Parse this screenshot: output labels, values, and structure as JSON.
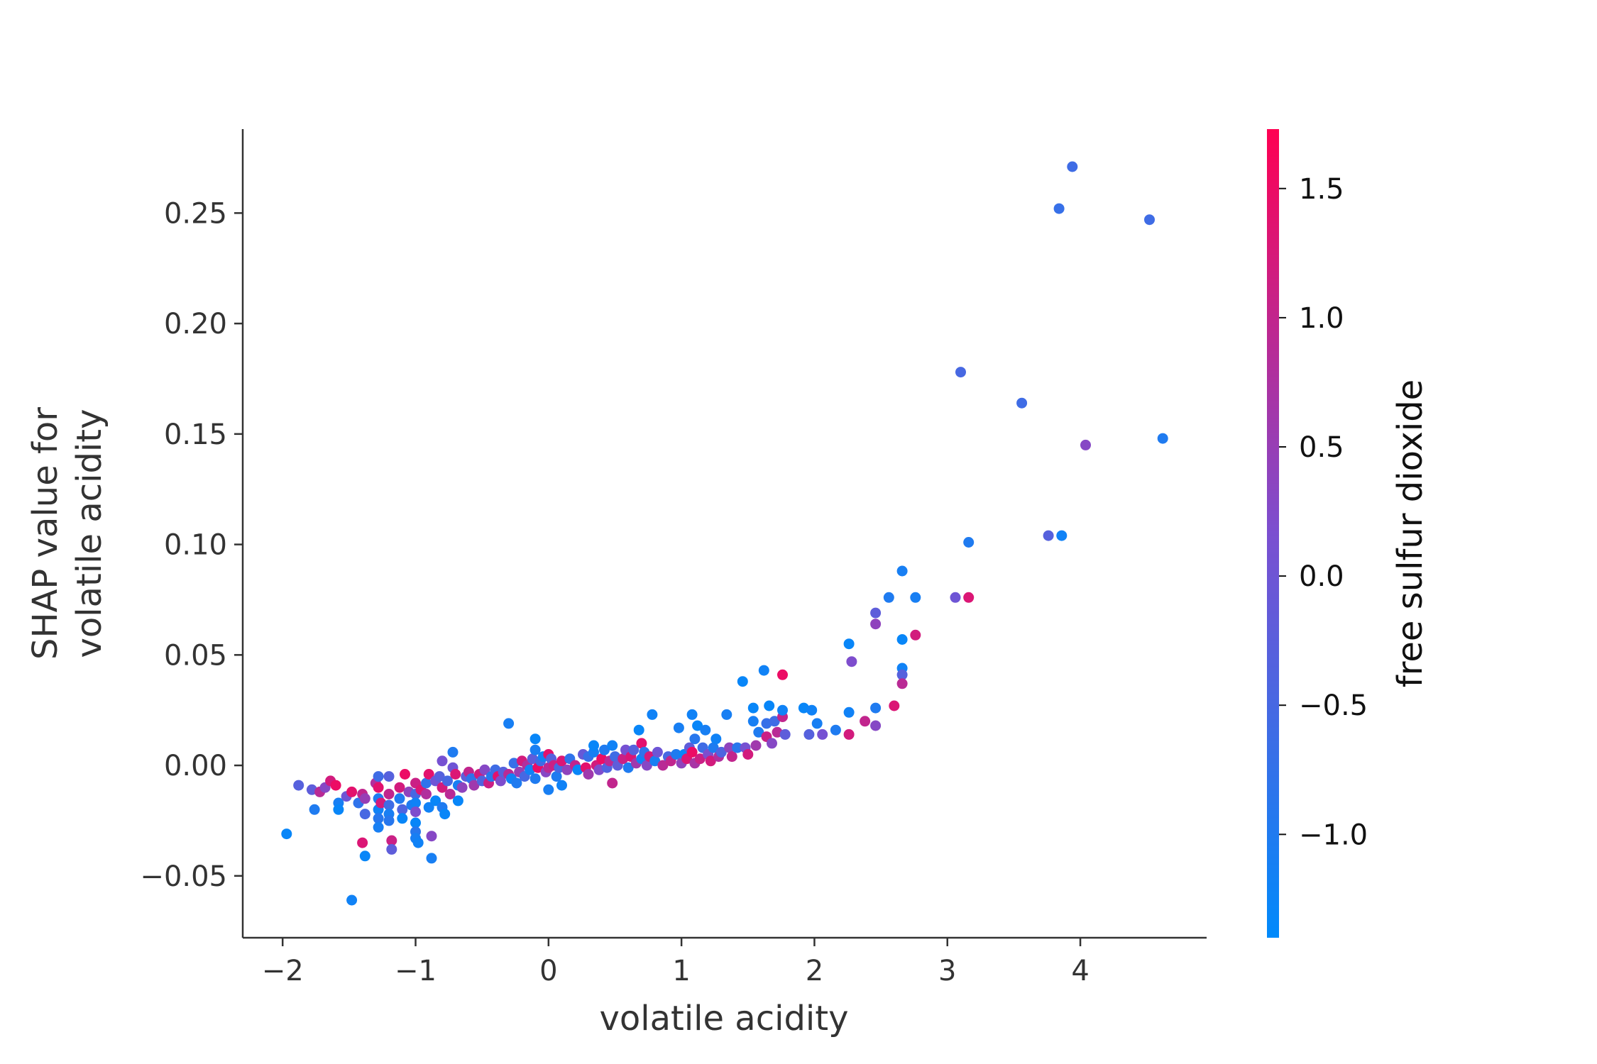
{
  "chart_data": {
    "type": "scatter",
    "xlabel": "volatile acidity",
    "ylabel_lines": [
      "SHAP value for",
      "volatile acidity"
    ],
    "colorbar_label": "free sulfur dioxide",
    "xlim": [
      -2.3,
      4.95
    ],
    "ylim": [
      -0.078,
      0.288
    ],
    "xticks": [
      -2,
      -1,
      0,
      1,
      2,
      3,
      4
    ],
    "xtick_labels": [
      "−2",
      "−1",
      "0",
      "1",
      "2",
      "3",
      "4"
    ],
    "yticks": [
      -0.05,
      0.0,
      0.05,
      0.1,
      0.15,
      0.2,
      0.25
    ],
    "ytick_labels": [
      "−0.05",
      "0.00",
      "0.05",
      "0.10",
      "0.15",
      "0.20",
      "0.25"
    ],
    "colorbar_range": [
      -1.4,
      1.73
    ],
    "colorbar_ticks": [
      -1.0,
      -0.5,
      0.0,
      0.5,
      1.0,
      1.5
    ],
    "colorbar_tick_labels": [
      "−1.0",
      "−0.5",
      "0.0",
      "0.5",
      "1.0",
      "1.5"
    ],
    "colormap": [
      "#008afb",
      "#7b4fd0",
      "#ff0052"
    ],
    "points": [
      [
        -1.97,
        -0.031,
        -1.3
      ],
      [
        -1.88,
        -0.009,
        -0.3
      ],
      [
        -1.78,
        -0.011,
        -0.2
      ],
      [
        -1.76,
        -0.02,
        -1.0
      ],
      [
        -1.72,
        -0.012,
        0.9
      ],
      [
        -1.68,
        -0.01,
        0.3
      ],
      [
        -1.64,
        -0.007,
        1.2
      ],
      [
        -1.6,
        -0.009,
        1.5
      ],
      [
        -1.58,
        -0.017,
        -1.1
      ],
      [
        -1.58,
        -0.02,
        -1.3
      ],
      [
        -1.52,
        -0.014,
        0.0
      ],
      [
        -1.48,
        -0.012,
        1.4
      ],
      [
        -1.48,
        -0.061,
        -1.2
      ],
      [
        -1.43,
        -0.017,
        -0.8
      ],
      [
        -1.4,
        -0.013,
        1.0
      ],
      [
        -1.38,
        -0.015,
        0.5
      ],
      [
        -1.38,
        -0.022,
        -0.5
      ],
      [
        -1.4,
        -0.035,
        1.3
      ],
      [
        -1.38,
        -0.041,
        -1.3
      ],
      [
        -1.3,
        -0.008,
        0.8
      ],
      [
        -1.28,
        -0.005,
        -0.6
      ],
      [
        -1.28,
        -0.01,
        1.4
      ],
      [
        -1.28,
        -0.015,
        -1.0
      ],
      [
        -1.28,
        -0.02,
        -1.2
      ],
      [
        -1.28,
        -0.024,
        -0.9
      ],
      [
        -1.28,
        -0.028,
        -1.1
      ],
      [
        -1.26,
        -0.017,
        1.2
      ],
      [
        -1.2,
        -0.005,
        -0.3
      ],
      [
        -1.2,
        -0.013,
        1.0
      ],
      [
        -1.2,
        -0.018,
        -0.6
      ],
      [
        -1.2,
        -0.022,
        -1.1
      ],
      [
        -1.2,
        -0.025,
        -0.9
      ],
      [
        -1.18,
        -0.034,
        1.1
      ],
      [
        -1.18,
        -0.038,
        -0.2
      ],
      [
        -1.12,
        -0.01,
        1.2
      ],
      [
        -1.12,
        -0.015,
        -1.0
      ],
      [
        -1.1,
        -0.02,
        -0.4
      ],
      [
        -1.1,
        -0.024,
        -1.3
      ],
      [
        -1.08,
        -0.004,
        1.5
      ],
      [
        -1.05,
        -0.012,
        0.4
      ],
      [
        -1.03,
        -0.018,
        -1.0
      ],
      [
        -1.0,
        -0.008,
        1.1
      ],
      [
        -1.0,
        -0.013,
        -0.5
      ],
      [
        -1.0,
        -0.017,
        -1.2
      ],
      [
        -1.0,
        -0.021,
        0.2
      ],
      [
        -1.0,
        -0.026,
        -1.3
      ],
      [
        -1.0,
        -0.03,
        -0.9
      ],
      [
        -1.0,
        -0.033,
        -1.1
      ],
      [
        -0.98,
        -0.035,
        -1.2
      ],
      [
        -0.96,
        -0.011,
        1.3
      ],
      [
        -0.92,
        -0.008,
        -0.8
      ],
      [
        -0.92,
        -0.013,
        0.8
      ],
      [
        -0.9,
        -0.004,
        1.4
      ],
      [
        -0.9,
        -0.019,
        -1.2
      ],
      [
        -0.88,
        -0.032,
        0.3
      ],
      [
        -0.88,
        -0.042,
        -1.1
      ],
      [
        -0.85,
        -0.007,
        0.0
      ],
      [
        -0.85,
        -0.016,
        -1.3
      ],
      [
        -0.82,
        -0.005,
        -0.3
      ],
      [
        -0.8,
        0.002,
        0.1
      ],
      [
        -0.8,
        -0.01,
        1.2
      ],
      [
        -0.8,
        -0.019,
        -1.0
      ],
      [
        -0.78,
        -0.022,
        -1.3
      ],
      [
        -0.76,
        -0.007,
        -0.5
      ],
      [
        -0.74,
        -0.013,
        0.9
      ],
      [
        -0.72,
        0.006,
        -1.0
      ],
      [
        -0.72,
        -0.001,
        0.0
      ],
      [
        -0.7,
        -0.004,
        1.3
      ],
      [
        -0.68,
        -0.009,
        -1.1
      ],
      [
        -0.68,
        -0.016,
        -1.3
      ],
      [
        -0.65,
        -0.01,
        0.4
      ],
      [
        -0.62,
        -0.005,
        -0.2
      ],
      [
        -0.6,
        -0.003,
        1.0
      ],
      [
        -0.58,
        -0.006,
        -0.8
      ],
      [
        -0.56,
        -0.009,
        0.6
      ],
      [
        -0.52,
        -0.004,
        1.2
      ],
      [
        -0.5,
        -0.007,
        -0.4
      ],
      [
        -0.48,
        -0.002,
        0.3
      ],
      [
        -0.45,
        -0.008,
        1.1
      ],
      [
        -0.43,
        -0.005,
        -0.9
      ],
      [
        -0.4,
        -0.002,
        -0.6
      ],
      [
        -0.38,
        -0.005,
        1.4
      ],
      [
        -0.36,
        -0.007,
        0.2
      ],
      [
        -0.34,
        -0.003,
        -0.3
      ],
      [
        -0.3,
        -0.004,
        0.9
      ],
      [
        -0.3,
        0.019,
        -1.1
      ],
      [
        -0.28,
        -0.006,
        -1.2
      ],
      [
        -0.26,
        0.001,
        -0.7
      ],
      [
        -0.24,
        -0.008,
        -1.0
      ],
      [
        -0.22,
        -0.003,
        0.5
      ],
      [
        -0.2,
        0.002,
        1.2
      ],
      [
        -0.18,
        -0.005,
        -0.5
      ],
      [
        -0.16,
        0.0,
        0.8
      ],
      [
        -0.14,
        -0.002,
        -1.2
      ],
      [
        -0.12,
        0.003,
        -0.2
      ],
      [
        -0.1,
        -0.006,
        -1.0
      ],
      [
        -0.1,
        0.012,
        -1.3
      ],
      [
        -0.1,
        0.007,
        -1.1
      ],
      [
        -0.08,
        -0.001,
        1.5
      ],
      [
        -0.06,
        0.002,
        -0.6
      ],
      [
        -0.04,
        0.004,
        -1.2
      ],
      [
        -0.02,
        -0.003,
        0.3
      ],
      [
        0.0,
        -0.001,
        0.9
      ],
      [
        0.0,
        0.005,
        1.4
      ],
      [
        0.0,
        -0.011,
        -1.1
      ],
      [
        0.02,
        0.003,
        -0.3
      ],
      [
        0.04,
        0.0,
        1.1
      ],
      [
        0.06,
        -0.005,
        -1.0
      ],
      [
        0.08,
        -0.001,
        -0.5
      ],
      [
        0.1,
        0.002,
        1.3
      ],
      [
        0.1,
        -0.009,
        -1.2
      ],
      [
        0.14,
        -0.002,
        0.4
      ],
      [
        0.16,
        0.003,
        -0.8
      ],
      [
        0.2,
        0.0,
        1.0
      ],
      [
        0.22,
        -0.002,
        -1.3
      ],
      [
        0.26,
        0.005,
        -0.1
      ],
      [
        0.28,
        -0.001,
        1.4
      ],
      [
        0.3,
        0.004,
        -0.7
      ],
      [
        0.3,
        -0.004,
        0.6
      ],
      [
        0.34,
        0.006,
        -1.1
      ],
      [
        0.34,
        0.009,
        -1.3
      ],
      [
        0.36,
        0.0,
        1.2
      ],
      [
        0.38,
        -0.002,
        0.2
      ],
      [
        0.4,
        0.003,
        1.5
      ],
      [
        0.42,
        0.007,
        -1.0
      ],
      [
        0.44,
        -0.001,
        -0.4
      ],
      [
        0.46,
        0.002,
        0.9
      ],
      [
        0.48,
        0.009,
        -1.2
      ],
      [
        0.48,
        -0.008,
        1.0
      ],
      [
        0.5,
        0.004,
        -0.6
      ],
      [
        0.52,
        0.0,
        -0.2
      ],
      [
        0.56,
        0.003,
        1.1
      ],
      [
        0.58,
        0.007,
        0.1
      ],
      [
        0.6,
        -0.001,
        -1.0
      ],
      [
        0.62,
        0.004,
        1.3
      ],
      [
        0.64,
        0.007,
        -0.3
      ],
      [
        0.66,
        0.001,
        0.6
      ],
      [
        0.68,
        0.016,
        -1.3
      ],
      [
        0.7,
        0.003,
        -1.2
      ],
      [
        0.7,
        0.01,
        1.4
      ],
      [
        0.72,
        0.006,
        -0.8
      ],
      [
        0.74,
        0.0,
        0.3
      ],
      [
        0.76,
        0.004,
        1.2
      ],
      [
        0.78,
        0.023,
        -1.2
      ],
      [
        0.8,
        0.002,
        -1.1
      ],
      [
        0.82,
        0.006,
        0.0
      ],
      [
        0.86,
        0.0,
        0.9
      ],
      [
        0.9,
        0.004,
        -0.5
      ],
      [
        0.92,
        0.002,
        1.0
      ],
      [
        0.96,
        0.005,
        -1.0
      ],
      [
        0.98,
        0.017,
        -1.1
      ],
      [
        1.0,
        0.001,
        0.4
      ],
      [
        1.02,
        0.005,
        -1.3
      ],
      [
        1.04,
        0.003,
        1.3
      ],
      [
        1.06,
        0.008,
        -0.2
      ],
      [
        1.08,
        0.023,
        -1.2
      ],
      [
        1.08,
        0.006,
        1.5
      ],
      [
        1.1,
        0.001,
        0.7
      ],
      [
        1.1,
        0.012,
        -0.9
      ],
      [
        1.12,
        0.018,
        -1.3
      ],
      [
        1.14,
        0.003,
        1.1
      ],
      [
        1.16,
        0.008,
        -0.6
      ],
      [
        1.18,
        0.016,
        -1.1
      ],
      [
        1.2,
        0.005,
        0.2
      ],
      [
        1.22,
        0.002,
        1.2
      ],
      [
        1.24,
        0.008,
        -1.0
      ],
      [
        1.26,
        0.012,
        -1.2
      ],
      [
        1.28,
        0.004,
        0.8
      ],
      [
        1.3,
        0.006,
        -0.4
      ],
      [
        1.34,
        0.023,
        -1.1
      ],
      [
        1.36,
        0.008,
        0.4
      ],
      [
        1.38,
        0.004,
        1.0
      ],
      [
        1.42,
        0.008,
        -0.9
      ],
      [
        1.46,
        0.038,
        -1.3
      ],
      [
        1.48,
        0.008,
        0.1
      ],
      [
        1.5,
        0.005,
        1.2
      ],
      [
        1.54,
        0.02,
        -1.1
      ],
      [
        1.54,
        0.026,
        -1.3
      ],
      [
        1.56,
        0.009,
        0.6
      ],
      [
        1.58,
        0.015,
        -1.0
      ],
      [
        1.62,
        0.043,
        -1.2
      ],
      [
        1.64,
        0.019,
        -0.7
      ],
      [
        1.64,
        0.013,
        1.1
      ],
      [
        1.66,
        0.027,
        -1.3
      ],
      [
        1.68,
        0.01,
        0.3
      ],
      [
        1.7,
        0.02,
        -0.6
      ],
      [
        1.72,
        0.015,
        0.9
      ],
      [
        1.76,
        0.041,
        1.5
      ],
      [
        1.76,
        0.022,
        1.0
      ],
      [
        1.76,
        0.025,
        -1.2
      ],
      [
        1.78,
        0.014,
        -0.2
      ],
      [
        1.92,
        0.026,
        -1.3
      ],
      [
        1.96,
        0.014,
        -0.3
      ],
      [
        1.98,
        0.025,
        -1.2
      ],
      [
        2.02,
        0.019,
        -1.1
      ],
      [
        2.06,
        0.014,
        0.1
      ],
      [
        2.16,
        0.016,
        -1.0
      ],
      [
        2.26,
        0.024,
        -1.2
      ],
      [
        2.26,
        0.055,
        -1.3
      ],
      [
        2.26,
        0.014,
        1.2
      ],
      [
        2.28,
        0.047,
        0.2
      ],
      [
        2.38,
        0.02,
        1.0
      ],
      [
        2.46,
        0.026,
        -1.0
      ],
      [
        2.46,
        0.018,
        0.3
      ],
      [
        2.46,
        0.069,
        -0.2
      ],
      [
        2.46,
        0.064,
        0.4
      ],
      [
        2.56,
        0.076,
        -1.0
      ],
      [
        2.6,
        0.027,
        1.3
      ],
      [
        2.66,
        0.088,
        -1.1
      ],
      [
        2.66,
        0.057,
        -1.3
      ],
      [
        2.66,
        0.044,
        -1.2
      ],
      [
        2.66,
        0.041,
        -0.3
      ],
      [
        2.66,
        0.037,
        0.9
      ],
      [
        2.76,
        0.059,
        1.2
      ],
      [
        2.76,
        0.076,
        -1.1
      ],
      [
        3.06,
        0.076,
        0.0
      ],
      [
        3.16,
        0.076,
        1.3
      ],
      [
        3.16,
        0.101,
        -1.0
      ],
      [
        3.1,
        0.178,
        -0.5
      ],
      [
        3.56,
        0.164,
        -0.6
      ],
      [
        3.76,
        0.104,
        -0.3
      ],
      [
        3.86,
        0.104,
        -1.2
      ],
      [
        3.84,
        0.252,
        -0.7
      ],
      [
        3.94,
        0.271,
        -0.6
      ],
      [
        4.04,
        0.145,
        0.3
      ],
      [
        4.52,
        0.247,
        -0.6
      ],
      [
        4.62,
        0.148,
        -1.0
      ]
    ]
  }
}
